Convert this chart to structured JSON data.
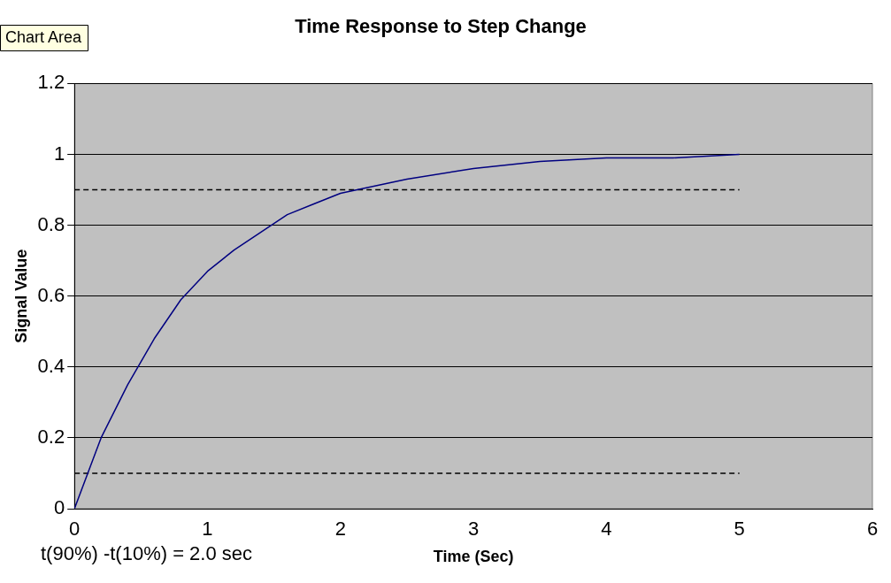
{
  "chart_data": {
    "type": "line",
    "title": "Time Response to Step Change",
    "xlabel": "Time (Sec)",
    "ylabel": "Signal Value",
    "annotations": [
      "Chart Area",
      "t(90%) -t(10%) = 2.0 sec"
    ],
    "series": [
      {
        "color": "#000080",
        "line_style": "solid",
        "x": [
          0,
          0.2,
          0.4,
          0.6,
          0.8,
          1.0,
          1.2,
          1.4,
          1.6,
          1.8,
          2.0,
          2.5,
          3.0,
          3.5,
          4.0,
          4.5,
          5.0
        ],
        "values": [
          0,
          0.2,
          0.35,
          0.48,
          0.59,
          0.67,
          0.73,
          0.78,
          0.83,
          0.86,
          0.89,
          0.93,
          0.96,
          0.98,
          0.99,
          0.99,
          1.0
        ]
      },
      {
        "color": "#000000",
        "line_style": "dashed",
        "x": [
          0,
          5
        ],
        "values": [
          0.9,
          0.9
        ]
      },
      {
        "color": "#000000",
        "line_style": "dashed",
        "x": [
          0,
          5
        ],
        "values": [
          0.1,
          0.1
        ]
      }
    ],
    "xlim": [
      0,
      6
    ],
    "xticks": [
      0,
      1,
      2,
      3,
      4,
      5,
      6
    ],
    "ylim": [
      0,
      1.2
    ],
    "yticks": [
      0,
      0.2,
      0.4,
      0.6,
      0.8,
      1,
      1.2
    ],
    "grid": "y",
    "legend": false,
    "marker": "none"
  }
}
